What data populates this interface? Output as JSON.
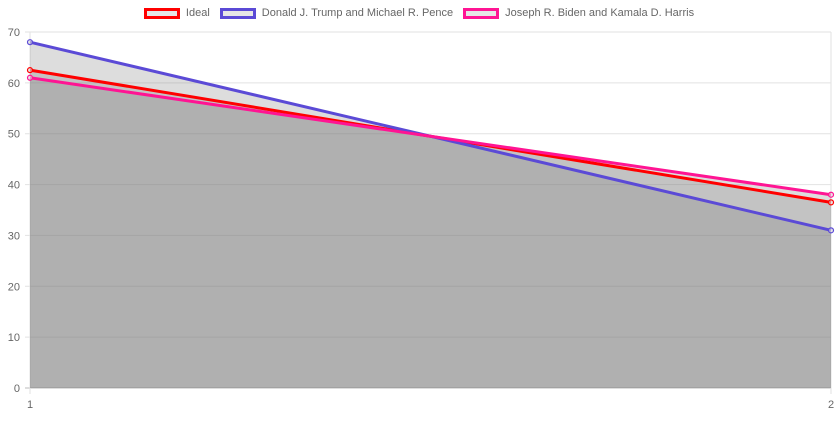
{
  "chart_data": {
    "type": "line",
    "categories": [
      "1",
      "2"
    ],
    "series": [
      {
        "name": "Ideal",
        "values": [
          62.5,
          36.5
        ],
        "color": "#ff0000",
        "fill": "rgba(120,120,120,0.25)"
      },
      {
        "name": "Donald J. Trump and Michael R. Pence",
        "values": [
          68,
          31
        ],
        "color": "#5b4ad6",
        "fill": "rgba(120,120,120,0.25)"
      },
      {
        "name": "Joseph R. Biden and Kamala D. Harris",
        "values": [
          61,
          38
        ],
        "color": "#ff1493",
        "fill": "rgba(120,120,120,0.25)"
      }
    ],
    "ylim": [
      0,
      70
    ],
    "y_ticks": [
      "0",
      "10",
      "20",
      "30",
      "40",
      "50",
      "60",
      "70"
    ],
    "title": "",
    "xlabel": "",
    "ylabel": "",
    "grid": true,
    "legend_position": "top"
  }
}
